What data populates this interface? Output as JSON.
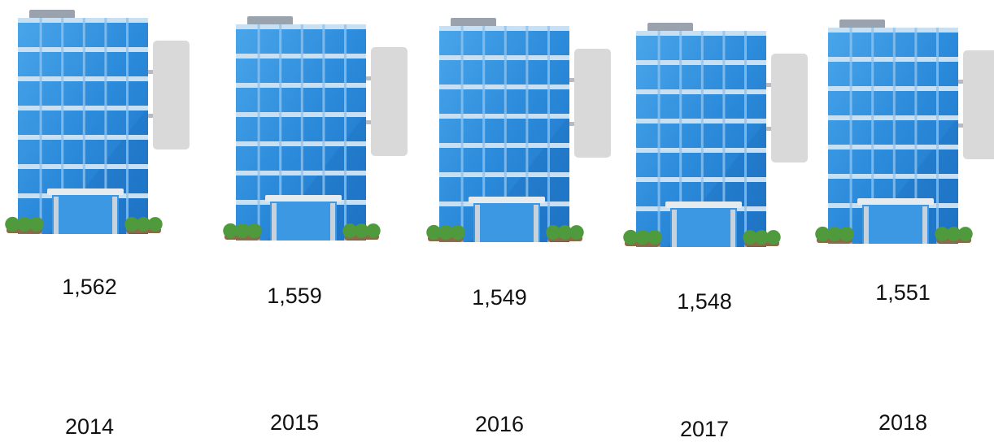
{
  "items": [
    {
      "value": "1,562",
      "year": "2014"
    },
    {
      "value": "1,559",
      "year": "2015"
    },
    {
      "value": "1,549",
      "year": "2016"
    },
    {
      "value": "1,548",
      "year": "2017"
    },
    {
      "value": "1,551",
      "year": "2018"
    }
  ]
}
